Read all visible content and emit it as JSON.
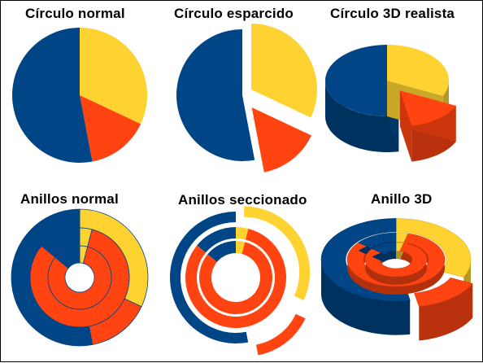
{
  "chart_data": [
    {
      "type": "pie",
      "title": "Círculo normal",
      "style": "flat",
      "values": [
        32,
        15,
        53
      ],
      "colors": [
        "#FDD231",
        "#FF4411",
        "#004586"
      ]
    },
    {
      "type": "pie",
      "title": "Círculo esparcido",
      "style": "exploded",
      "values": [
        32,
        15,
        53
      ],
      "colors": [
        "#FDD231",
        "#FF4411",
        "#004586"
      ]
    },
    {
      "type": "pie",
      "title": "Círculo 3D realista",
      "style": "3d",
      "values": [
        32,
        15,
        53
      ],
      "colors": [
        "#FDD231",
        "#FF4411",
        "#004586"
      ]
    },
    {
      "type": "donut",
      "title": "Anillos normal",
      "style": "flat",
      "rings": [
        {
          "values": [
            32,
            15,
            53
          ]
        },
        {
          "values": [
            4,
            82,
            14
          ]
        },
        {
          "values": [
            4,
            82,
            14
          ]
        }
      ],
      "colors": [
        "#FDD231",
        "#FF4411",
        "#004586"
      ]
    },
    {
      "type": "donut",
      "title": "Anillos seccionado",
      "style": "exploded",
      "rings": [
        {
          "values": [
            32,
            15,
            53
          ]
        },
        {
          "values": [
            4,
            82,
            14
          ]
        },
        {
          "values": [
            4,
            82,
            14
          ]
        }
      ],
      "colors": [
        "#FDD231",
        "#FF4411",
        "#004586"
      ]
    },
    {
      "type": "donut",
      "title": "Anillo 3D",
      "style": "3d",
      "rings": [
        {
          "values": [
            32,
            15,
            53
          ]
        },
        {
          "values": [
            4,
            82,
            14
          ]
        },
        {
          "values": [
            4,
            82,
            14
          ]
        }
      ],
      "colors": [
        "#FDD231",
        "#FF4411",
        "#004586"
      ]
    }
  ]
}
